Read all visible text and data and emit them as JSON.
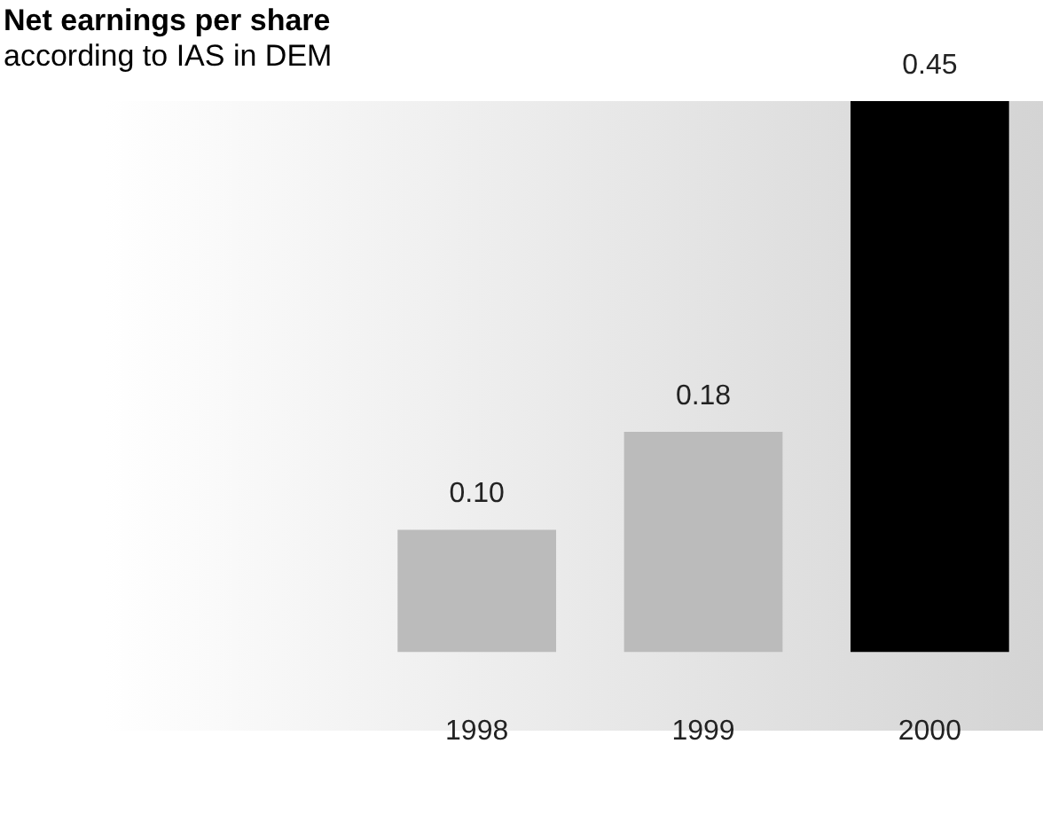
{
  "chart_data": {
    "type": "bar",
    "title": "Net earnings per share",
    "subtitle": "according to IAS in DEM",
    "categories": [
      "1998",
      "1999",
      "2000"
    ],
    "values": [
      0.1,
      0.18,
      0.45
    ],
    "colors": [
      "#bbbbbb",
      "#bbbbbb",
      "#000000"
    ],
    "value_labels": [
      "0.10",
      "0.18",
      "0.45"
    ],
    "grid": false,
    "legend": false
  }
}
